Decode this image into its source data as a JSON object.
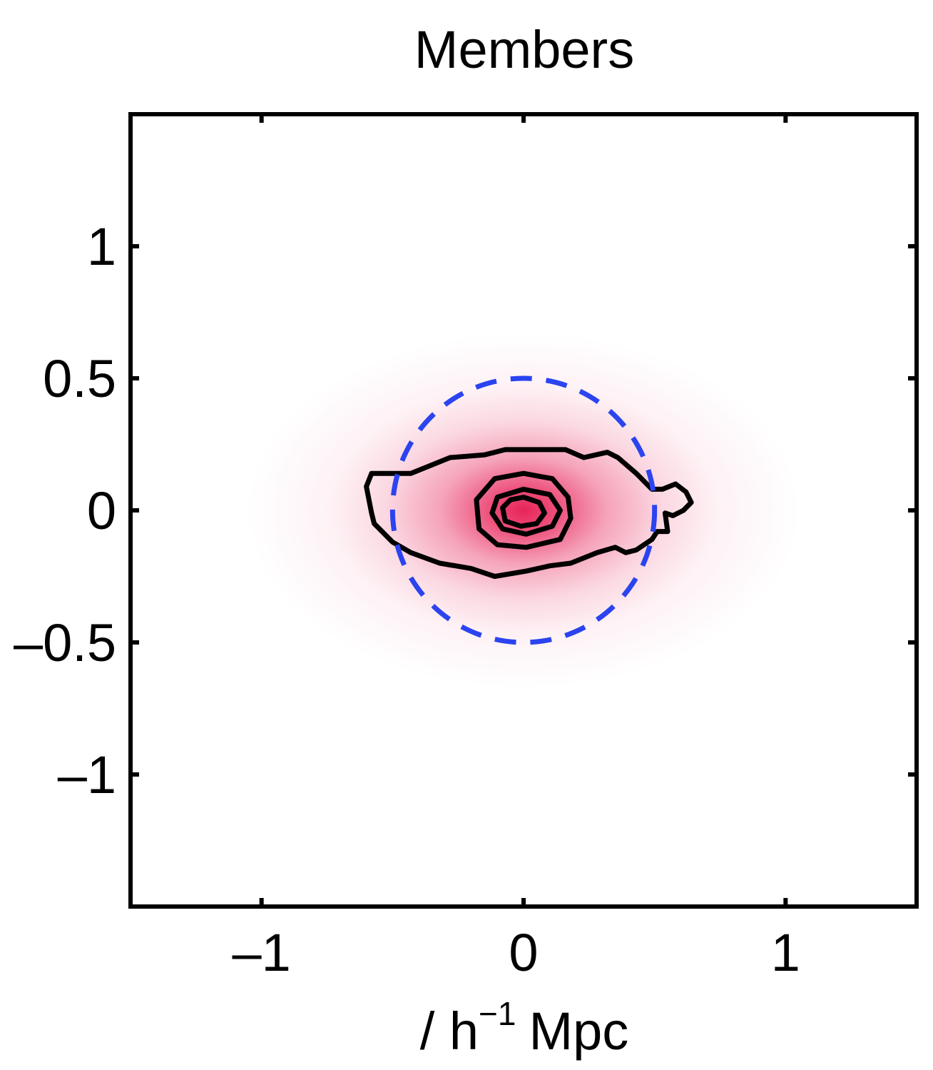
{
  "chart_data": {
    "type": "contour",
    "title": "Members",
    "xlabel": [
      "/ h",
      "−1",
      "Mpc"
    ],
    "xlim": [
      -1.5,
      1.5
    ],
    "ylim": [
      -1.5,
      1.5
    ],
    "xticks": [
      {
        "value": -1,
        "label": "–1"
      },
      0,
      1
    ],
    "yticks": [
      {
        "value": -1,
        "label": "–1"
      },
      {
        "value": -0.5,
        "label": "–0.5"
      },
      0,
      0.5,
      1
    ],
    "grid": false,
    "density": {
      "x": 0,
      "y": 0,
      "sx": 0.33,
      "sy": 0.21,
      "color": "#e8245a"
    },
    "circle": {
      "x": 0,
      "y": 0,
      "r": 0.5,
      "color": "#2b44f0",
      "dashed": true
    },
    "series": [
      {
        "color": "#000000",
        "x": [
          -0.58,
          -0.51,
          -0.43,
          -0.28,
          -0.15,
          -0.07,
          0.07,
          0.16,
          0.23,
          0.32,
          0.36,
          0.43,
          0.49,
          0.53,
          0.58,
          0.62,
          0.64,
          0.61,
          0.57,
          0.54,
          0.55,
          0.51,
          0.49,
          0.43,
          0.39,
          0.35,
          0.28,
          0.23,
          0.18,
          0.1,
          0.01,
          -0.11,
          -0.2,
          -0.32,
          -0.43,
          -0.5,
          -0.57,
          -0.58,
          -0.6
        ],
        "y": [
          0.14,
          0.14,
          0.14,
          0.2,
          0.21,
          0.23,
          0.23,
          0.23,
          0.2,
          0.22,
          0.2,
          0.14,
          0.08,
          0.08,
          0.1,
          0.07,
          0.03,
          0,
          -0.02,
          -0.01,
          -0.08,
          -0.08,
          -0.11,
          -0.15,
          -0.16,
          -0.14,
          -0.16,
          -0.18,
          -0.2,
          -0.21,
          -0.23,
          -0.25,
          -0.22,
          -0.2,
          -0.16,
          -0.12,
          -0.05,
          -0.01,
          0.09
        ]
      },
      {
        "color": "#000000",
        "x": [
          0,
          0.11,
          0.17,
          0.18,
          0.14,
          0.01,
          -0.1,
          -0.17,
          -0.18,
          -0.11
        ],
        "y": [
          0.14,
          0.12,
          0.05,
          -0.03,
          -0.11,
          -0.14,
          -0.13,
          -0.07,
          0.04,
          0.12
        ]
      },
      {
        "color": "#000000",
        "x": [
          0,
          0.1,
          0.14,
          0.11,
          0.01,
          -0.08,
          -0.12,
          -0.1
        ],
        "y": [
          0.08,
          0.06,
          0,
          -0.06,
          -0.09,
          -0.07,
          -0.01,
          0.05
        ]
      },
      {
        "color": "#000000",
        "x": [
          0,
          0.06,
          0.08,
          0.05,
          -0.01,
          -0.07,
          -0.08,
          -0.05
        ],
        "y": [
          0.05,
          0.03,
          -0.01,
          -0.05,
          -0.06,
          -0.04,
          0.01,
          0.04
        ]
      }
    ]
  }
}
